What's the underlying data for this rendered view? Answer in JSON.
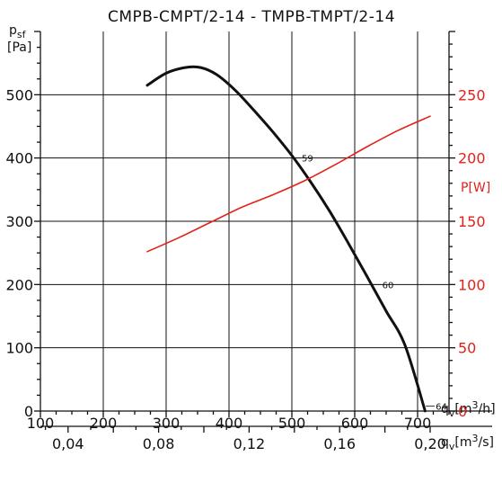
{
  "chart_data": {
    "type": "line",
    "title": "CMPB-CMPT/2-14 - TMPB-TMPT/2-14",
    "ylabel": {
      "main": "p",
      "sub": "sf",
      "unit": "[Pa]"
    },
    "y2label": "P[W]",
    "x1label": {
      "main": "q",
      "sub": "v",
      "unit_pre": "[m",
      "sup": "3",
      "unit_post": "/h]"
    },
    "x2label": {
      "main": "q",
      "sub": "v",
      "unit_pre": "[m",
      "sup": "3",
      "unit_post": "/s]"
    },
    "xlim": [
      100,
      750
    ],
    "ylim": [
      0,
      600
    ],
    "y2lim": [
      0,
      300
    ],
    "x_ticks": [
      "100",
      "200",
      "300",
      "400",
      "500",
      "600",
      "700"
    ],
    "x2_ticks": [
      {
        "q_m3h": 144,
        "label": "0,04"
      },
      {
        "q_m3h": 288,
        "label": "0,08"
      },
      {
        "q_m3h": 432,
        "label": "0,12"
      },
      {
        "q_m3h": 576,
        "label": "0,16"
      },
      {
        "q_m3h": 720,
        "label": "0,20"
      }
    ],
    "y_ticks": [
      "0",
      "100",
      "200",
      "300",
      "400",
      "500"
    ],
    "y2_ticks": [
      "0",
      "50",
      "100",
      "150",
      "200",
      "250"
    ],
    "grid": true,
    "colors": {
      "pressure": "#111111",
      "power": "#e32119"
    },
    "series": [
      {
        "axis": "left",
        "x": [
          270,
          300,
          330,
          355,
          380,
          410,
          440,
          470,
          500,
          530,
          560,
          590,
          620,
          650,
          680,
          712
        ],
        "y": [
          515,
          534,
          543,
          543,
          532,
          507,
          475,
          441,
          404,
          362,
          316,
          265,
          212,
          158,
          104,
          0
        ]
      },
      {
        "axis": "right",
        "x": [
          270,
          320,
          370,
          420,
          470,
          520,
          570,
          620,
          670,
          720
        ],
        "y": [
          126,
          137,
          149,
          161,
          171,
          182,
          195,
          209,
          222,
          233
        ]
      }
    ],
    "annotations": [
      {
        "text": "59",
        "x": 500,
        "y": 400
      },
      {
        "text": "60",
        "x": 628,
        "y": 200
      },
      {
        "text": "64",
        "x": 713,
        "y": 8
      }
    ]
  }
}
